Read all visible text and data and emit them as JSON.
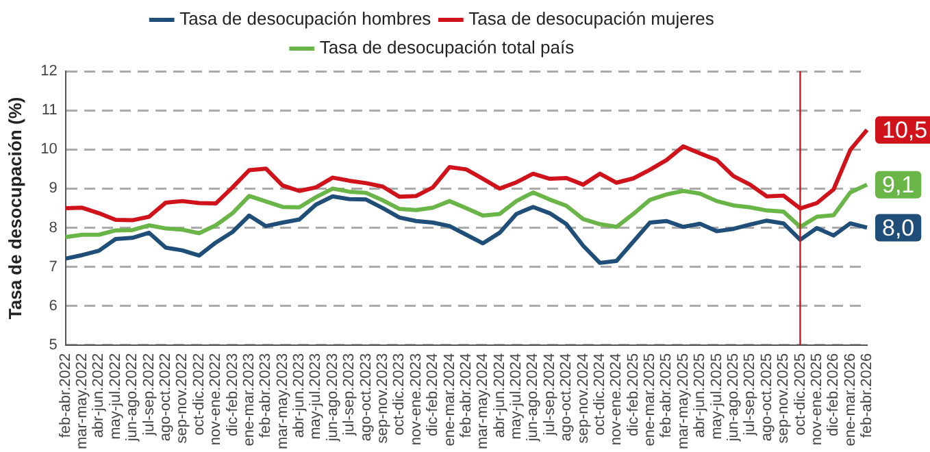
{
  "chart_data": {
    "type": "line",
    "ylabel": "Tasa de desocupación (%)",
    "categories": [
      "feb-abr.2022",
      "mar-may.2022",
      "abr-jun.2022",
      "may-jul.2022",
      "jun-ago.2022",
      "jul-sep.2022",
      "ago-oct.2022",
      "sep-nov.2022",
      "oct-dic.2022",
      "nov-ene.2022",
      "dic-feb.2023",
      "ene-mar.2023",
      "feb-abr.2023",
      "mar-may.2023",
      "abr-jun.2023",
      "may-jul.2023",
      "jun-ago.2023",
      "jul-sep.2023",
      "ago-oct.2023",
      "sep-nov.2023",
      "oct-dic.2023",
      "nov-ene.2023",
      "dic-feb.2024",
      "ene-mar.2024",
      "feb-abr.2024",
      "mar-may.2024",
      "abr-jun.2024",
      "may-jul.2024",
      "jun-ago.2024",
      "jul-sep.2024",
      "ago-oct.2024",
      "sep-nov.2024",
      "oct-dic.2024",
      "nov-ene.2024",
      "dic-feb.2025",
      "ene-mar.2025",
      "feb-abr.2025",
      "mar-may.2025",
      "abr-jun.2025",
      "may-jul.2025",
      "jun-ago.2025",
      "jul-sep.2025",
      "ago-oct.2025",
      "sep-nov.2025",
      "oct-dic.2025",
      "nov-ene.2025",
      "dic-feb.2026",
      "ene-mar.2026",
      "feb-abr.2026"
    ],
    "series": [
      {
        "name": "Tasa de desocupación hombres",
        "color": "#1f4e79",
        "values": [
          7.21,
          7.3,
          7.41,
          7.71,
          7.74,
          7.87,
          7.49,
          7.42,
          7.29,
          7.62,
          7.89,
          8.31,
          8.04,
          8.13,
          8.21,
          8.59,
          8.8,
          8.73,
          8.72,
          8.5,
          8.26,
          8.17,
          8.13,
          8.04,
          7.82,
          7.6,
          7.87,
          8.35,
          8.53,
          8.37,
          8.09,
          7.54,
          7.1,
          7.15,
          7.64,
          8.13,
          8.17,
          8.02,
          8.1,
          7.91,
          7.97,
          8.08,
          8.18,
          8.11,
          7.69,
          7.99,
          7.8,
          8.11,
          8.0
        ],
        "value_labels": [
          null,
          null,
          null,
          null,
          null,
          null,
          null,
          null,
          null,
          null,
          null,
          null,
          null,
          null,
          null,
          null,
          null,
          null,
          null,
          null,
          null,
          null,
          null,
          null,
          null,
          null,
          null,
          null,
          null,
          null,
          null,
          null,
          null,
          null,
          null,
          null,
          null,
          null,
          null,
          null,
          null,
          null,
          null,
          null,
          null,
          null,
          null,
          null,
          "8,0"
        ]
      },
      {
        "name": "Tasa de desocupación mujeres",
        "color": "#d0121b",
        "values": [
          8.5,
          8.51,
          8.37,
          8.2,
          8.19,
          8.28,
          8.64,
          8.68,
          8.63,
          8.62,
          9.03,
          9.47,
          9.51,
          9.08,
          8.94,
          9.03,
          9.28,
          9.2,
          9.14,
          9.05,
          8.79,
          8.81,
          9.03,
          9.55,
          9.49,
          9.25,
          9.0,
          9.16,
          9.38,
          9.25,
          9.27,
          9.1,
          9.38,
          9.15,
          9.26,
          9.48,
          9.73,
          10.08,
          9.9,
          9.73,
          9.32,
          9.1,
          8.8,
          8.82,
          8.49,
          8.63,
          8.98,
          9.99,
          10.5
        ],
        "value_labels": [
          null,
          null,
          null,
          null,
          null,
          null,
          null,
          null,
          null,
          null,
          null,
          null,
          null,
          null,
          null,
          null,
          null,
          null,
          null,
          null,
          null,
          null,
          null,
          null,
          null,
          null,
          null,
          null,
          null,
          null,
          null,
          null,
          null,
          null,
          null,
          null,
          null,
          null,
          null,
          null,
          null,
          null,
          null,
          null,
          null,
          null,
          null,
          null,
          "10,5"
        ]
      },
      {
        "name": "Tasa de desocupación total país",
        "color": "#6ab547",
        "values": [
          7.76,
          7.82,
          7.82,
          7.93,
          7.94,
          8.06,
          7.98,
          7.95,
          7.86,
          8.06,
          8.37,
          8.81,
          8.67,
          8.53,
          8.52,
          8.78,
          9.0,
          8.92,
          8.89,
          8.7,
          8.48,
          8.45,
          8.51,
          8.68,
          8.5,
          8.31,
          8.35,
          8.68,
          8.9,
          8.72,
          8.56,
          8.22,
          8.09,
          8.02,
          8.35,
          8.71,
          8.85,
          8.94,
          8.87,
          8.68,
          8.57,
          8.52,
          8.44,
          8.41,
          8.02,
          8.28,
          8.32,
          8.9,
          9.1
        ],
        "value_labels": [
          null,
          null,
          null,
          null,
          null,
          null,
          null,
          null,
          null,
          null,
          null,
          null,
          null,
          null,
          null,
          null,
          null,
          null,
          null,
          null,
          null,
          null,
          null,
          null,
          null,
          null,
          null,
          null,
          null,
          null,
          null,
          null,
          null,
          null,
          null,
          null,
          null,
          null,
          null,
          null,
          null,
          null,
          null,
          null,
          null,
          null,
          null,
          null,
          "9,1"
        ]
      }
    ],
    "ylim": [
      5,
      12
    ],
    "yticks": [
      5,
      6,
      7,
      8,
      9,
      10,
      11,
      12
    ],
    "grid": "y",
    "legend": "top",
    "marker": "none",
    "line_style": "solid",
    "ref_lines": [
      {
        "axis": "x",
        "value": "oct-dic.2025",
        "color": "#d0121b"
      }
    ]
  }
}
